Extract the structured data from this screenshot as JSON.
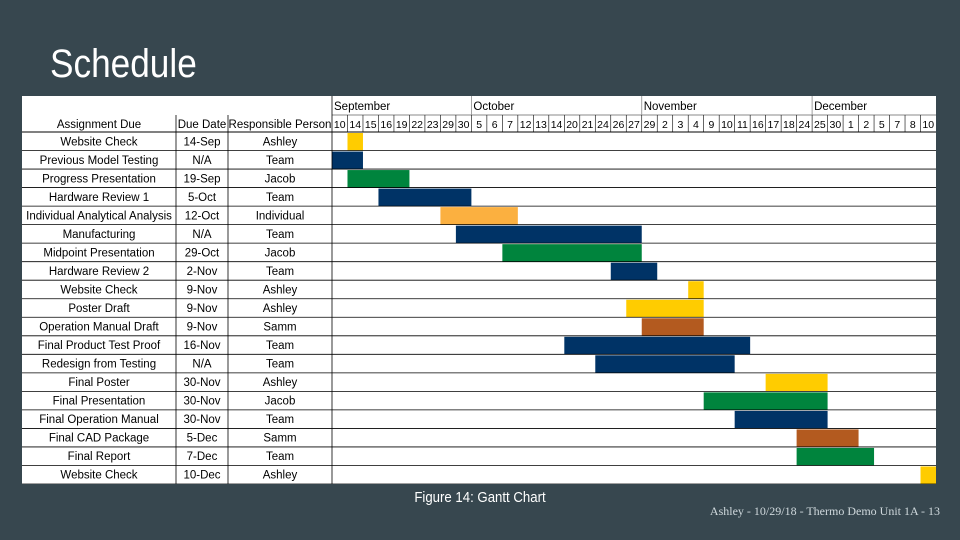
{
  "slide": {
    "title": "Schedule",
    "caption": "Figure 14: Gantt Chart",
    "footer": "Ashley - 10/29/18 - Thermo Demo Unit 1A - 13"
  },
  "chart_data": {
    "type": "table",
    "columns": [
      "Assignment Due",
      "Due Date",
      "Responsible Person"
    ],
    "months": [
      {
        "label": "September",
        "col_start": 0
      },
      {
        "label": "October",
        "col_start": 9
      },
      {
        "label": "November",
        "col_start": 20
      },
      {
        "label": "December",
        "col_start": 31
      }
    ],
    "day_labels": [
      "10",
      "14",
      "15",
      "16",
      "19",
      "22",
      "23",
      "29",
      "30",
      "5",
      "6",
      "7",
      "12",
      "13",
      "14",
      "20",
      "21",
      "24",
      "26",
      "27",
      "29",
      "2",
      "3",
      "4",
      "9",
      "10",
      "11",
      "16",
      "17",
      "18",
      "24",
      "25",
      "30",
      "1",
      "2",
      "5",
      "7",
      "8",
      "10"
    ],
    "rows": [
      {
        "task": "Website Check",
        "due": "14-Sep",
        "person": "Ashley",
        "start": 1,
        "end": 2,
        "color": "yellow"
      },
      {
        "task": "Previous Model Testing",
        "due": "N/A",
        "person": "Team",
        "start": 0,
        "end": 2,
        "color": "navy"
      },
      {
        "task": "Progress Presentation",
        "due": "19-Sep",
        "person": "Jacob",
        "start": 1,
        "end": 5,
        "color": "green"
      },
      {
        "task": "Hardware Review 1",
        "due": "5-Oct",
        "person": "Team",
        "start": 3,
        "end": 9,
        "color": "navy"
      },
      {
        "task": "Individual Analytical Analysis",
        "due": "12-Oct",
        "person": "Individual",
        "start": 7,
        "end": 12,
        "color": "orange"
      },
      {
        "task": "Manufacturing",
        "due": "N/A",
        "person": "Team",
        "start": 8,
        "end": 20,
        "color": "navy"
      },
      {
        "task": "Midpoint Presentation",
        "due": "29-Oct",
        "person": "Jacob",
        "start": 11,
        "end": 20,
        "color": "green"
      },
      {
        "task": "Hardware Review 2",
        "due": "2-Nov",
        "person": "Team",
        "start": 18,
        "end": 21,
        "color": "navy"
      },
      {
        "task": "Website Check",
        "due": "9-Nov",
        "person": "Ashley",
        "start": 23,
        "end": 24,
        "color": "yellow"
      },
      {
        "task": "Poster Draft",
        "due": "9-Nov",
        "person": "Ashley",
        "start": 19,
        "end": 24,
        "color": "yellow"
      },
      {
        "task": "Operation Manual Draft",
        "due": "9-Nov",
        "person": "Samm",
        "start": 20,
        "end": 24,
        "color": "brown"
      },
      {
        "task": "Final Product Test Proof",
        "due": "16-Nov",
        "person": "Team",
        "start": 15,
        "end": 27,
        "color": "navy"
      },
      {
        "task": "Redesign from Testing",
        "due": "N/A",
        "person": "Team",
        "start": 17,
        "end": 26,
        "color": "navy"
      },
      {
        "task": "Final Poster",
        "due": "30-Nov",
        "person": "Ashley",
        "start": 28,
        "end": 32,
        "color": "yellow"
      },
      {
        "task": "Final Presentation",
        "due": "30-Nov",
        "person": "Jacob",
        "start": 24,
        "end": 32,
        "color": "green"
      },
      {
        "task": "Final Operation Manual",
        "due": "30-Nov",
        "person": "Team",
        "start": 26,
        "end": 32,
        "color": "navy"
      },
      {
        "task": "Final CAD Package",
        "due": "5-Dec",
        "person": "Samm",
        "start": 30,
        "end": 34,
        "color": "brown"
      },
      {
        "task": "Final Report",
        "due": "7-Dec",
        "person": "Team",
        "start": 30,
        "end": 35,
        "color": "green"
      },
      {
        "task": "Website Check",
        "due": "10-Dec",
        "person": "Ashley",
        "start": 38,
        "end": 39,
        "color": "yellow"
      }
    ],
    "colors": {
      "yellow": "#ffcc00",
      "navy": "#003366",
      "green": "#00843d",
      "orange": "#fbb040",
      "brown": "#b35a1f",
      "gridline": "#000000",
      "header_line": "#8a8a8a"
    }
  }
}
